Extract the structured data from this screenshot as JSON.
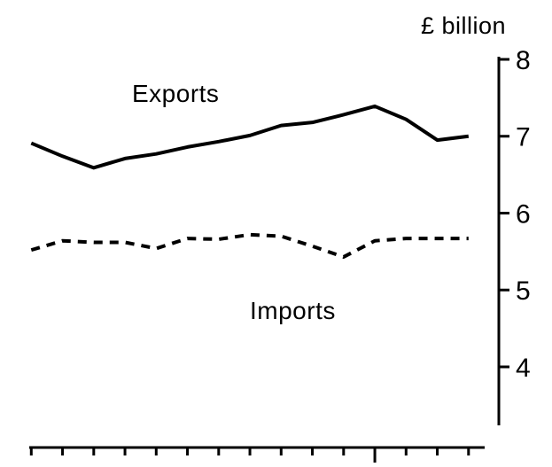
{
  "labels": {
    "unit": "£ billion",
    "exports": "Exports",
    "imports": "Imports"
  },
  "colors": {
    "foreground": "#000000",
    "background": "#ffffff"
  },
  "chart_data": {
    "type": "line",
    "title": "",
    "xlabel": "",
    "ylabel": "£ billion",
    "grid": false,
    "legend_position": "inline-labels",
    "y_axis_side": "right",
    "yticks": [
      8,
      7,
      6,
      5,
      4
    ],
    "ylim": [
      3.2,
      8
    ],
    "x": [
      1,
      2,
      3,
      4,
      5,
      6,
      7,
      8,
      9,
      10,
      11,
      12,
      13,
      14,
      15
    ],
    "x_axis": {
      "tick_count": 15,
      "tick_labels_visible": false,
      "major_tick_index": 11
    },
    "series": [
      {
        "name": "Exports",
        "line_style": "solid",
        "color": "#000000",
        "values": [
          6.91,
          6.74,
          6.59,
          6.71,
          6.77,
          6.86,
          6.93,
          7.01,
          7.14,
          7.18,
          7.28,
          7.39,
          7.22,
          6.95,
          7.0
        ]
      },
      {
        "name": "Imports",
        "line_style": "dashed",
        "color": "#000000",
        "values": [
          5.52,
          5.64,
          5.62,
          5.62,
          5.54,
          5.67,
          5.66,
          5.72,
          5.7,
          5.57,
          5.43,
          5.64,
          5.67,
          5.67,
          5.67
        ]
      }
    ]
  }
}
